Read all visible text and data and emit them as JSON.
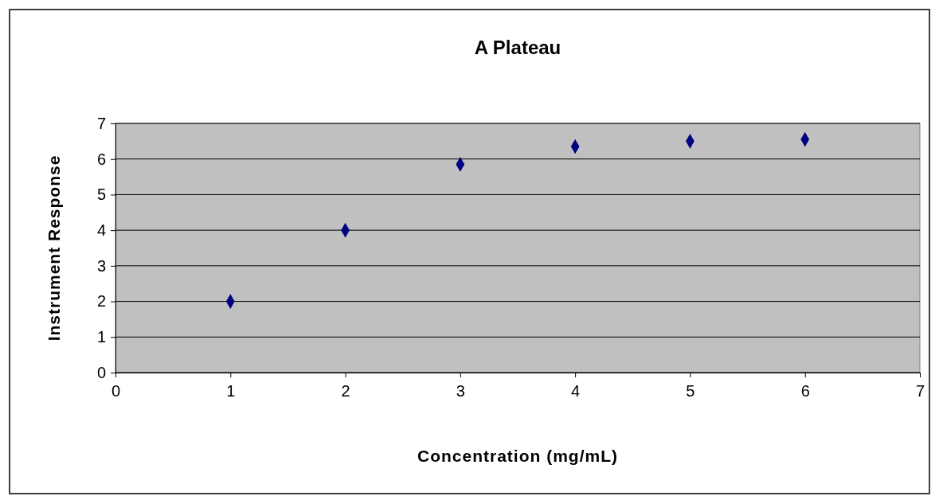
{
  "chart_data": {
    "type": "scatter",
    "title": "A Plateau",
    "xlabel": "Concentration (mg/mL)",
    "ylabel": "Instrument Response",
    "x": [
      1,
      2,
      3,
      4,
      5,
      6
    ],
    "series": [
      {
        "color": "#000080",
        "values": [
          2.0,
          4.0,
          5.85,
          6.35,
          6.5,
          6.55
        ]
      }
    ],
    "xlim": [
      0,
      7
    ],
    "xticks": [
      0,
      1,
      2,
      3,
      4,
      5,
      6,
      7
    ],
    "ylim": [
      0,
      7
    ],
    "yticks": [
      0,
      1,
      2,
      3,
      4,
      5,
      6,
      7
    ],
    "grid": "y",
    "marker": "diamond"
  }
}
